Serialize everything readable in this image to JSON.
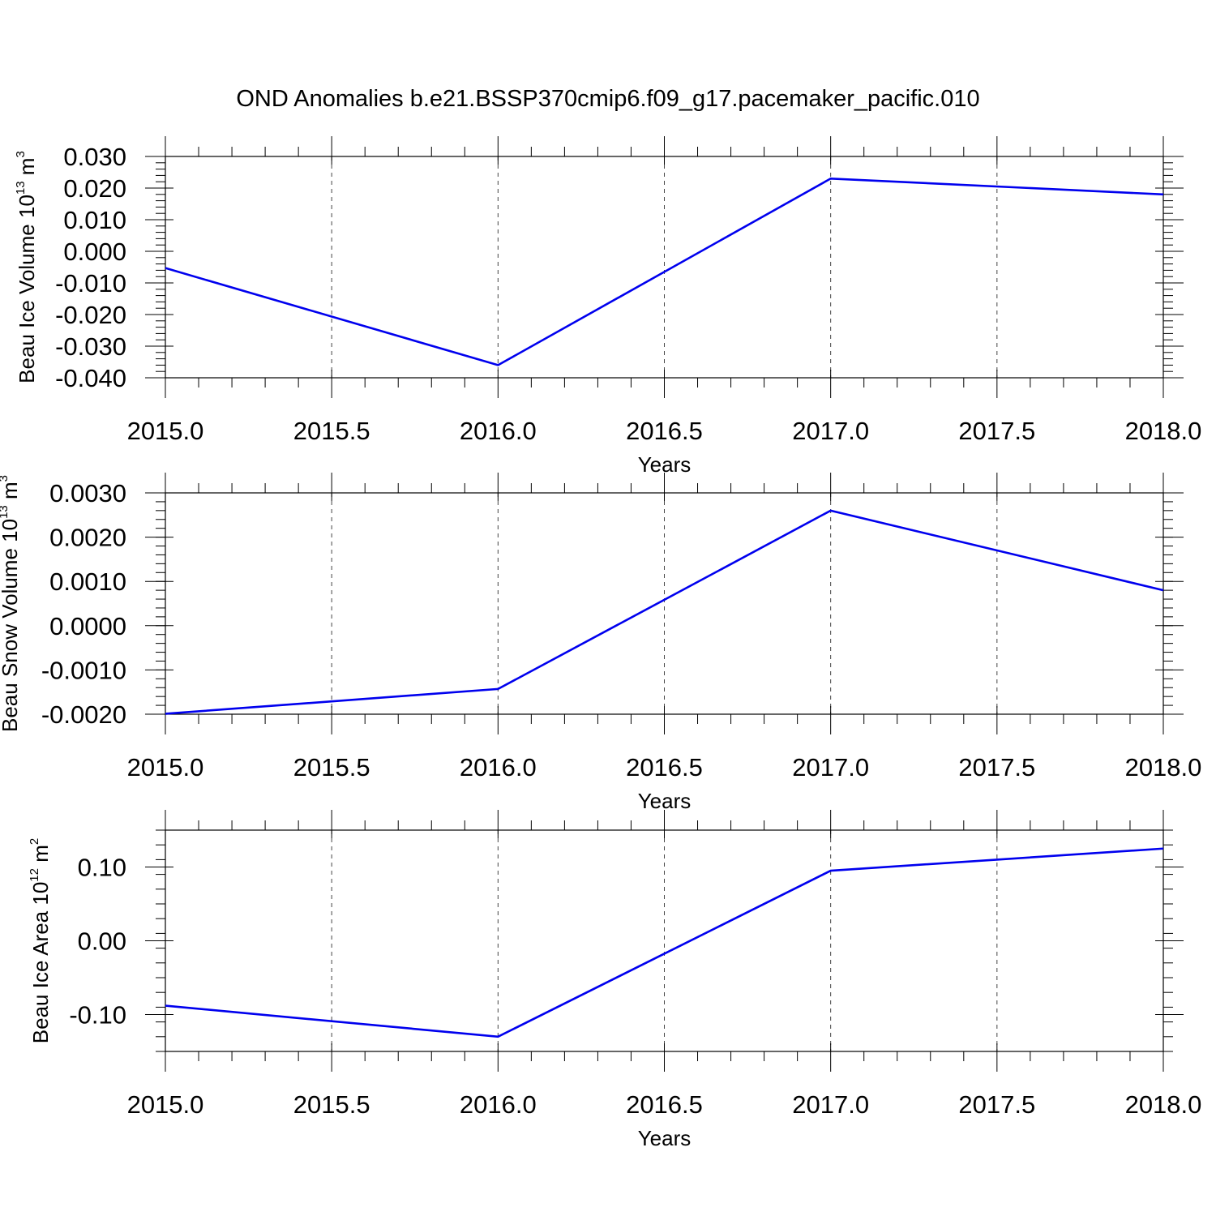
{
  "title": "OND Anomalies b.e21.BSSP370cmip6.f09_g17.pacemaker_pacific.010",
  "colors": {
    "series": "#0000ee",
    "axis": "#000000",
    "grid": "#444444"
  },
  "chart_data": [
    {
      "type": "line",
      "ylabel": {
        "text": "Beau Ice Volume 10",
        "sup": "13",
        "unit": " m",
        "unit_sup": "3"
      },
      "xlabel": "Years",
      "xlim": [
        2015.0,
        2018.0
      ],
      "ylim": [
        -0.04,
        0.03
      ],
      "x_ticks": [
        2015.0,
        2015.5,
        2016.0,
        2016.5,
        2017.0,
        2017.5,
        2018.0
      ],
      "x_tick_labels": [
        "2015.0",
        "2015.5",
        "2016.0",
        "2016.5",
        "2017.0",
        "2017.5",
        "2018.0"
      ],
      "y_ticks": [
        -0.04,
        -0.03,
        -0.02,
        -0.01,
        0.0,
        0.01,
        0.02,
        0.03
      ],
      "y_tick_labels": [
        "-0.040",
        "-0.030",
        "-0.020",
        "-0.010",
        "0.000",
        "0.010",
        "0.020",
        "0.030"
      ],
      "y_minor_step": 0.002,
      "grid": "vertical-dashed",
      "series": [
        {
          "x": [
            2015,
            2016,
            2017,
            2018
          ],
          "y": [
            -0.0053,
            -0.036,
            0.023,
            0.018
          ]
        }
      ]
    },
    {
      "type": "line",
      "ylabel": {
        "text": "Beau Snow Volume 10",
        "sup": "13",
        "unit": " m",
        "unit_sup": "3"
      },
      "xlabel": "Years",
      "xlim": [
        2015.0,
        2018.0
      ],
      "ylim": [
        -0.002,
        0.003
      ],
      "x_ticks": [
        2015.0,
        2015.5,
        2016.0,
        2016.5,
        2017.0,
        2017.5,
        2018.0
      ],
      "x_tick_labels": [
        "2015.0",
        "2015.5",
        "2016.0",
        "2016.5",
        "2017.0",
        "2017.5",
        "2018.0"
      ],
      "y_ticks": [
        -0.002,
        -0.001,
        0.0,
        0.001,
        0.002,
        0.003
      ],
      "y_tick_labels": [
        "-0.0020",
        "-0.0010",
        "0.0000",
        "0.0010",
        "0.0020",
        "0.0030"
      ],
      "y_minor_step": 0.0002,
      "grid": "vertical-dashed",
      "series": [
        {
          "x": [
            2015,
            2016,
            2017,
            2018
          ],
          "y": [
            -0.00199,
            -0.00143,
            0.0026,
            0.0008
          ]
        }
      ]
    },
    {
      "type": "line",
      "ylabel": {
        "text": "Beau Ice Area 10",
        "sup": "12",
        "unit": " m",
        "unit_sup": "2"
      },
      "xlabel": "Years",
      "xlim": [
        2015.0,
        2018.0
      ],
      "ylim": [
        -0.15,
        0.15
      ],
      "x_ticks": [
        2015.0,
        2015.5,
        2016.0,
        2016.5,
        2017.0,
        2017.5,
        2018.0
      ],
      "x_tick_labels": [
        "2015.0",
        "2015.5",
        "2016.0",
        "2016.5",
        "2017.0",
        "2017.5",
        "2018.0"
      ],
      "y_ticks": [
        -0.1,
        0.0,
        0.1
      ],
      "y_tick_labels": [
        "-0.10",
        "0.00",
        "0.10"
      ],
      "y_minor_step": 0.02,
      "grid": "vertical-dashed",
      "series": [
        {
          "x": [
            2015,
            2016,
            2017,
            2018
          ],
          "y": [
            -0.088,
            -0.13,
            0.095,
            0.125
          ]
        }
      ]
    }
  ]
}
